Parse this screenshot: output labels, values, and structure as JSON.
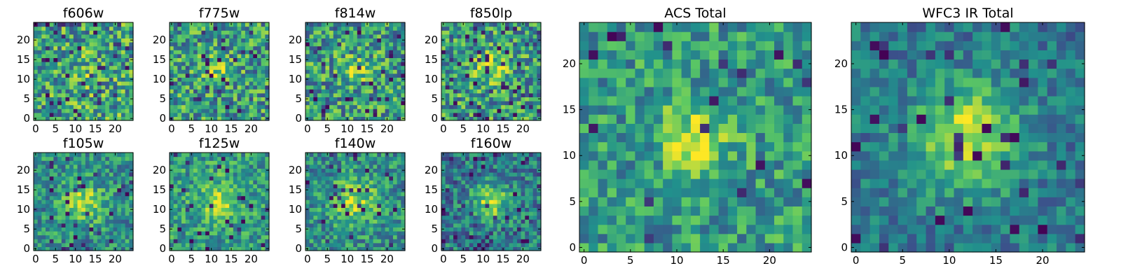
{
  "chart_data": {
    "type": "heatmap",
    "grid_size": 25,
    "colormap": "viridis",
    "colormap_stops": [
      "#440154",
      "#3b528b",
      "#21918c",
      "#5ec962",
      "#fde725"
    ],
    "panels": [
      {
        "id": "f606w",
        "title": "f606w",
        "xticks": [
          0,
          5,
          10,
          15,
          20
        ],
        "yticks": [
          0,
          5,
          10,
          15,
          20
        ],
        "noise": 0.42,
        "blob": {
          "cx": 12,
          "cy": 12,
          "amp": 0.1,
          "sigma": 3.5
        },
        "base": 0.58,
        "dark_fraction": 0.06
      },
      {
        "id": "f775w",
        "title": "f775w",
        "xticks": [
          0,
          5,
          10,
          15,
          20
        ],
        "yticks": [
          0,
          5,
          10,
          15,
          20
        ],
        "noise": 0.4,
        "blob": {
          "cx": 12,
          "cy": 12,
          "amp": 0.28,
          "sigma": 2.5
        },
        "base": 0.55,
        "dark_fraction": 0.06
      },
      {
        "id": "f814w",
        "title": "f814w",
        "xticks": [
          0,
          5,
          10,
          15,
          20
        ],
        "yticks": [
          0,
          5,
          10,
          15,
          20
        ],
        "noise": 0.4,
        "blob": {
          "cx": 12,
          "cy": 12,
          "amp": 0.25,
          "sigma": 2.5
        },
        "base": 0.55,
        "dark_fraction": 0.07
      },
      {
        "id": "f850lp",
        "title": "f850lp",
        "xticks": [
          0,
          5,
          10,
          15,
          20
        ],
        "yticks": [
          0,
          5,
          10,
          15,
          20
        ],
        "noise": 0.4,
        "blob": {
          "cx": 12,
          "cy": 13,
          "amp": 0.3,
          "sigma": 2.8
        },
        "base": 0.55,
        "dark_fraction": 0.06
      },
      {
        "id": "f105w",
        "title": "f105w",
        "xticks": [
          0,
          5,
          10,
          15,
          20
        ],
        "yticks": [
          0,
          5,
          10,
          15,
          20
        ],
        "noise": 0.3,
        "blob": {
          "cx": 12,
          "cy": 12,
          "amp": 0.35,
          "sigma": 3.5
        },
        "base": 0.5,
        "dark_fraction": 0.04
      },
      {
        "id": "f125w",
        "title": "f125w",
        "xticks": [
          0,
          5,
          10,
          15,
          20
        ],
        "yticks": [
          0,
          5,
          10,
          15,
          20
        ],
        "noise": 0.3,
        "blob": {
          "cx": 12,
          "cy": 12,
          "amp": 0.3,
          "sigma": 3.5
        },
        "base": 0.55,
        "dark_fraction": 0.04
      },
      {
        "id": "f140w",
        "title": "f140w",
        "xticks": [
          0,
          5,
          10,
          15,
          20
        ],
        "yticks": [
          0,
          5,
          10,
          15,
          20
        ],
        "noise": 0.3,
        "blob": {
          "cx": 12,
          "cy": 12,
          "amp": 0.35,
          "sigma": 3.8
        },
        "base": 0.5,
        "dark_fraction": 0.04
      },
      {
        "id": "f160w",
        "title": "f160w",
        "xticks": [
          0,
          5,
          10,
          15,
          20
        ],
        "yticks": [
          0,
          5,
          10,
          15,
          20
        ],
        "noise": 0.3,
        "blob": {
          "cx": 12,
          "cy": 12,
          "amp": 0.45,
          "sigma": 3.2
        },
        "base": 0.42,
        "dark_fraction": 0.07
      },
      {
        "id": "acs-total",
        "title": "ACS Total",
        "xticks": [
          0,
          5,
          10,
          15,
          20
        ],
        "yticks": [
          0,
          5,
          10,
          15,
          20
        ],
        "noise": 0.3,
        "blob": {
          "cx": 12,
          "cy": 12,
          "amp": 0.35,
          "sigma": 2.6
        },
        "base": 0.55,
        "dark_fraction": 0.03
      },
      {
        "id": "wfc3-ir-total",
        "title": "WFC3 IR Total",
        "xticks": [
          0,
          5,
          10,
          15,
          20
        ],
        "yticks": [
          0,
          5,
          10,
          15,
          20
        ],
        "noise": 0.22,
        "blob": {
          "cx": 12,
          "cy": 12,
          "amp": 0.5,
          "sigma": 4.0
        },
        "base": 0.4,
        "dark_fraction": 0.04
      }
    ]
  }
}
